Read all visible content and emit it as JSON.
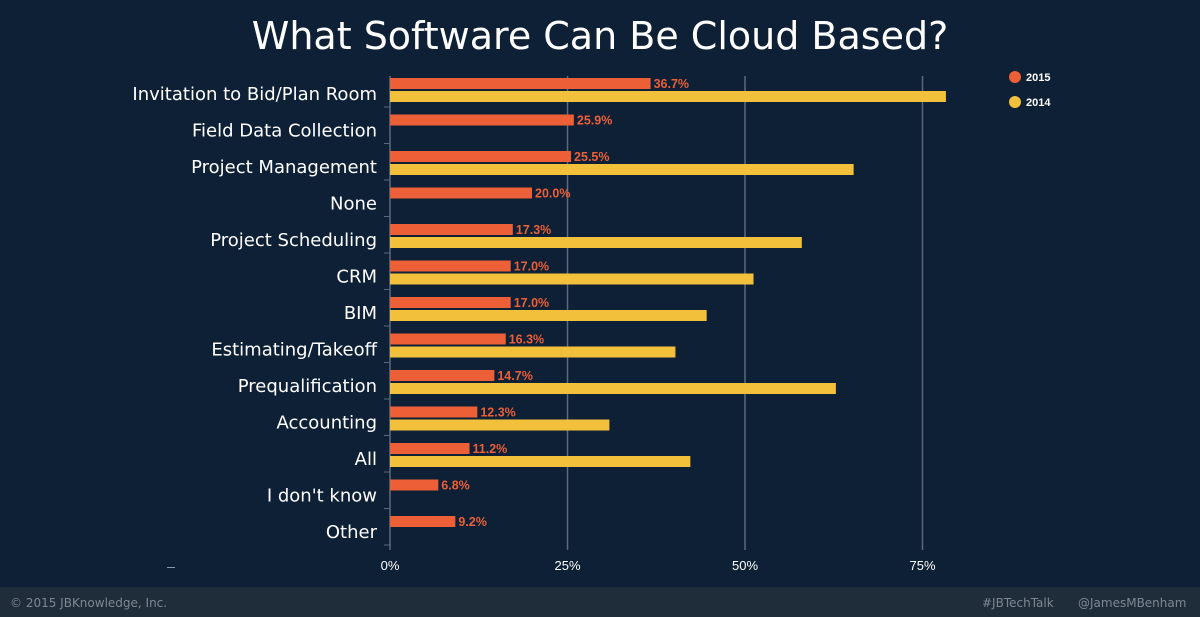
{
  "colors": {
    "background": "#0e2036",
    "series_2015": "#ec5f37",
    "series_2014": "#f3c03c",
    "grid": "#5b6a7a",
    "label_text": "#ffffff",
    "value_text": "#ec5f37"
  },
  "footer": {
    "copyright": "© 2015 JBKnowledge, Inc.",
    "hashtag": "#JBTechTalk",
    "handle": "@JamesMBenham"
  },
  "chart_data": {
    "type": "bar",
    "orientation": "horizontal",
    "title": "What Software Can Be Cloud Based?",
    "categories": [
      "Invitation to Bid/Plan Room",
      "Field Data Collection",
      "Project Management",
      "None",
      "Project Scheduling",
      "CRM",
      "BIM",
      "Estimating/Takeoff",
      "Prequalification",
      "Accounting",
      "All",
      "I don't know",
      "Other"
    ],
    "series": [
      {
        "name": "2015",
        "values": [
          36.7,
          25.9,
          25.5,
          20.0,
          17.3,
          17.0,
          17.0,
          16.3,
          14.7,
          12.3,
          11.2,
          6.8,
          9.2
        ],
        "labels": [
          "36.7%",
          "25.9%",
          "25.5%",
          "20.0%",
          "17.3%",
          "17.0%",
          "17.0%",
          "16.3%",
          "14.7%",
          "12.3%",
          "11.2%",
          "6.8%",
          "9.2%"
        ]
      },
      {
        "name": "2014",
        "values": [
          78.3,
          null,
          65.3,
          null,
          58.0,
          51.2,
          44.6,
          40.2,
          62.8,
          30.9,
          42.3,
          null,
          null
        ]
      }
    ],
    "xlim": [
      0,
      100
    ],
    "xticks": [
      0,
      25,
      50,
      75
    ],
    "xtick_labels": [
      "0%",
      "25%",
      "50%",
      "75%"
    ],
    "grid": true,
    "legend": [
      "2015",
      "2014"
    ],
    "legend_position": "top-right"
  }
}
